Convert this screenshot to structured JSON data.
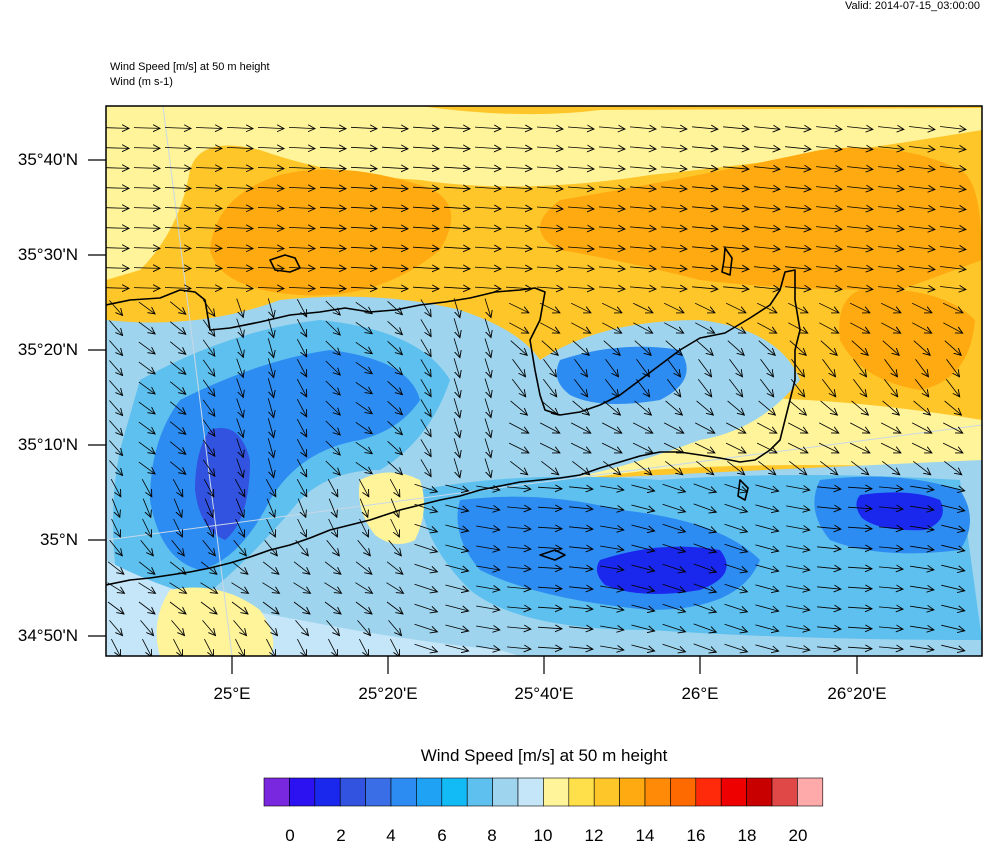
{
  "header": {
    "valid": "Valid: 2014-07-15_03:00:00",
    "title_line1": "Wind Speed [m/s] at 50 m height",
    "title_line2": "Wind   (m s-1)"
  },
  "map": {
    "lat_labels": [
      "35°40'N",
      "35°30'N",
      "35°20'N",
      "35°10'N",
      "35°N",
      "34°50'N"
    ],
    "lon_labels": [
      "25°E",
      "25°20'E",
      "25°40'E",
      "26°E",
      "26°20'E"
    ]
  },
  "colorbar": {
    "title": "Wind Speed [m/s] at 50 m height",
    "tick_labels": [
      "0",
      "2",
      "4",
      "6",
      "8",
      "10",
      "12",
      "14",
      "16",
      "18",
      "20"
    ],
    "colors": [
      "#7a28e0",
      "#2c12f0",
      "#1a28ee",
      "#3252e0",
      "#3a6ee6",
      "#2d8cf2",
      "#20a2f4",
      "#12baf6",
      "#5ec0ee",
      "#9ed4ee",
      "#c4e6f8",
      "#fff49a",
      "#ffe04a",
      "#ffc62a",
      "#ffaa10",
      "#ff8a08",
      "#ff6a00",
      "#ff2a0a",
      "#ee0000",
      "#c80000",
      "#e04848",
      "#ffaaaa"
    ]
  },
  "styles": {
    "land_outline": "#000000",
    "graticule": "#c8d8e8",
    "arrow": "#000000"
  }
}
